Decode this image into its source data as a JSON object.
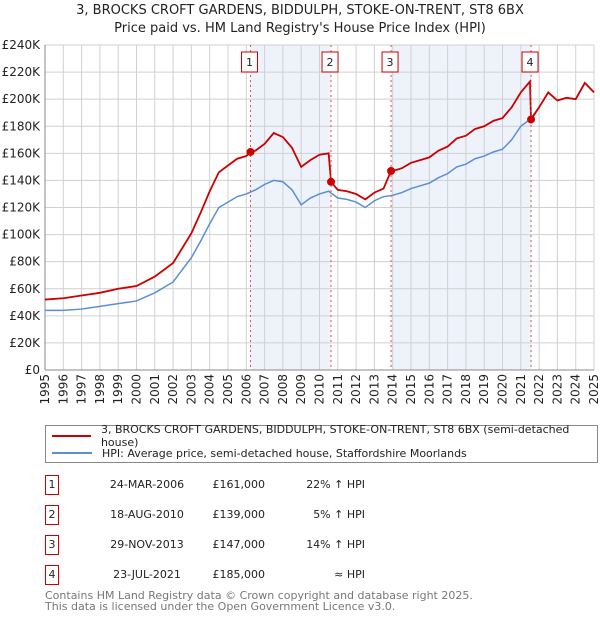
{
  "title": "3, BROCKS CROFT GARDENS, BIDDULPH, STOKE-ON-TRENT, ST8 6BX",
  "subtitle": "Price paid vs. HM Land Registry's House Price Index (HPI)",
  "chart_data": {
    "type": "line",
    "title": "3, BROCKS CROFT GARDENS, BIDDULPH, STOKE-ON-TRENT, ST8 6BX",
    "subtitle": "Price paid vs. HM Land Registry's House Price Index (HPI)",
    "xlim": [
      1995,
      2025
    ],
    "ylim": [
      0,
      240000
    ],
    "x_ticks": [
      "1995",
      "1996",
      "1997",
      "1998",
      "1999",
      "2000",
      "2001",
      "2002",
      "2003",
      "2004",
      "2005",
      "2006",
      "2007",
      "2008",
      "2009",
      "2010",
      "2011",
      "2012",
      "2013",
      "2014",
      "2015",
      "2016",
      "2017",
      "2018",
      "2019",
      "2020",
      "2021",
      "2022",
      "2023",
      "2024",
      "2025"
    ],
    "y_ticks": [
      {
        "v": 0,
        "label": "£0"
      },
      {
        "v": 20000,
        "label": "£20K"
      },
      {
        "v": 40000,
        "label": "£40K"
      },
      {
        "v": 60000,
        "label": "£60K"
      },
      {
        "v": 80000,
        "label": "£80K"
      },
      {
        "v": 100000,
        "label": "£100K"
      },
      {
        "v": 120000,
        "label": "£120K"
      },
      {
        "v": 140000,
        "label": "£140K"
      },
      {
        "v": 160000,
        "label": "£160K"
      },
      {
        "v": 180000,
        "label": "£180K"
      },
      {
        "v": 200000,
        "label": "£200K"
      },
      {
        "v": 220000,
        "label": "£220K"
      },
      {
        "v": 240000,
        "label": "£240K"
      }
    ],
    "grid": true,
    "series": [
      {
        "name": "3, BROCKS CROFT GARDENS, BIDDULPH, STOKE-ON-TRENT, ST8 6BX (semi-detached house)",
        "color": "#cc0000",
        "x": [
          1995,
          1996,
          1997,
          1998,
          1999,
          2000,
          2001,
          2002,
          2003,
          2003.5,
          2004,
          2004.5,
          2005,
          2005.5,
          2006,
          2006.23,
          2006.5,
          2007,
          2007.5,
          2008,
          2008.5,
          2009,
          2009.5,
          2010,
          2010.5,
          2010.63,
          2011,
          2011.5,
          2012,
          2012.5,
          2013,
          2013.5,
          2013.91,
          2014,
          2014.5,
          2015,
          2015.5,
          2016,
          2016.5,
          2017,
          2017.5,
          2018,
          2018.5,
          2019,
          2019.5,
          2020,
          2020.5,
          2021,
          2021.5,
          2021.56,
          2022,
          2022.5,
          2023,
          2023.5,
          2024,
          2024.5,
          2025
        ],
        "y": [
          52000,
          53000,
          55000,
          57000,
          60000,
          62000,
          69000,
          79000,
          101000,
          116000,
          132000,
          146000,
          151000,
          156000,
          158000,
          161000,
          162000,
          167000,
          175000,
          172000,
          164000,
          150000,
          155000,
          159000,
          160000,
          139000,
          133000,
          132000,
          130000,
          126000,
          131000,
          134000,
          147000,
          147000,
          149000,
          153000,
          155000,
          157000,
          162000,
          165000,
          171000,
          173000,
          178000,
          180000,
          184000,
          186000,
          194000,
          205000,
          213000,
          185000,
          194000,
          205000,
          199000,
          201000,
          200000,
          212000,
          205000
        ]
      },
      {
        "name": "HPI: Average price, semi-detached house, Staffordshire Moorlands",
        "color": "#5b8fd4",
        "x": [
          1995,
          1996,
          1997,
          1998,
          1999,
          2000,
          2001,
          2002,
          2003,
          2003.5,
          2004,
          2004.5,
          2005,
          2005.5,
          2006,
          2006.5,
          2007,
          2007.5,
          2008,
          2008.5,
          2009,
          2009.5,
          2010,
          2010.5,
          2011,
          2011.5,
          2012,
          2012.5,
          2013,
          2013.5,
          2014,
          2014.5,
          2015,
          2015.5,
          2016,
          2016.5,
          2017,
          2017.5,
          2018,
          2018.5,
          2019,
          2019.5,
          2020,
          2020.5,
          2021,
          2021.5,
          2022,
          2022.5,
          2023,
          2023.5,
          2024,
          2024.5,
          2025
        ],
        "y": [
          44000,
          44000,
          45000,
          47000,
          49000,
          51000,
          57000,
          65000,
          83000,
          95000,
          108000,
          120000,
          124000,
          128000,
          130000,
          133000,
          137000,
          140000,
          139000,
          133000,
          122000,
          127000,
          130000,
          132000,
          127000,
          126000,
          124000,
          120000,
          125000,
          128000,
          129000,
          131000,
          134000,
          136000,
          138000,
          142000,
          145000,
          150000,
          152000,
          156000,
          158000,
          161000,
          163000,
          170000,
          180000,
          185000,
          194000,
          205000,
          199000,
          201000,
          200000,
          212000,
          205000
        ]
      }
    ],
    "sales": [
      {
        "n": "1",
        "year": 2006.23,
        "price": 161000
      },
      {
        "n": "2",
        "year": 2010.63,
        "price": 139000
      },
      {
        "n": "3",
        "year": 2013.91,
        "price": 147000
      },
      {
        "n": "4",
        "year": 2021.56,
        "price": 185000
      }
    ],
    "shaded_ranges": [
      [
        2006.23,
        2010.63
      ],
      [
        2013.91,
        2021.56
      ]
    ],
    "legend_placement": "below"
  },
  "legend": {
    "red": "3, BROCKS CROFT GARDENS, BIDDULPH, STOKE-ON-TRENT, ST8 6BX (semi-detached house)",
    "blue": "HPI: Average price, semi-detached house, Staffordshire Moorlands"
  },
  "transactions": [
    {
      "n": "1",
      "date": "24-MAR-2006",
      "price": "£161,000",
      "hpi": "22% ↑ HPI"
    },
    {
      "n": "2",
      "date": "18-AUG-2010",
      "price": "£139,000",
      "hpi": "5% ↑ HPI"
    },
    {
      "n": "3",
      "date": "29-NOV-2013",
      "price": "£147,000",
      "hpi": "14% ↑ HPI"
    },
    {
      "n": "4",
      "date": "23-JUL-2021",
      "price": "£185,000",
      "hpi": "≈ HPI"
    }
  ],
  "footer": {
    "line1": "Contains HM Land Registry data © Crown copyright and database right 2025.",
    "line2": "This data is licensed under the Open Government Licence v3.0."
  }
}
